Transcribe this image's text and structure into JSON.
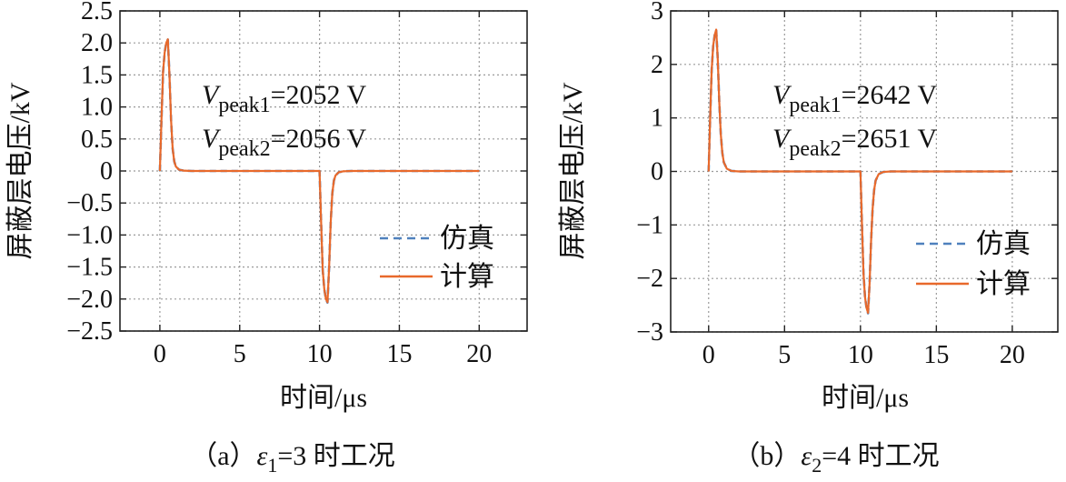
{
  "chart_data": [
    {
      "id": "a",
      "type": "line",
      "title": "",
      "caption": {
        "prefix": "（a）",
        "symbol": "ε",
        "sub": "1",
        "suffix": "=3 时工况"
      },
      "xlabel": "时间/μs",
      "ylabel": "屏蔽层电压/kV",
      "xlim": [
        -2.5,
        23
      ],
      "ylim": [
        -2.5,
        2.5
      ],
      "xticks": [
        0,
        5,
        10,
        15,
        20
      ],
      "xtick_labels": [
        "0",
        "5",
        "10",
        "15",
        "20"
      ],
      "yticks": [
        2.5,
        2.0,
        1.5,
        1.0,
        0.5,
        0,
        -0.5,
        -1.0,
        -1.5,
        -2.0,
        -2.5
      ],
      "ytick_labels": [
        "2.5",
        "2.0",
        "1.5",
        "1.0",
        "0.5",
        "0",
        "−0.5",
        "−1.0",
        "−1.5",
        "−2.0",
        "−2.5"
      ],
      "grid": true,
      "legend": {
        "position": "right-lower"
      },
      "series": [
        {
          "name": "仿真",
          "style": "dashed",
          "color": "#4f81bd",
          "x": [
            0,
            0.1,
            0.2,
            0.3,
            0.4,
            0.5,
            0.6,
            0.7,
            0.8,
            0.9,
            1.0,
            1.2,
            1.5,
            2.0,
            10.0,
            10.1,
            10.2,
            10.3,
            10.4,
            10.5,
            10.6,
            10.7,
            10.8,
            10.9,
            11.0,
            11.2,
            11.5,
            12.0,
            20.0
          ],
          "y": [
            0,
            0.8,
            1.55,
            1.85,
            2.0,
            2.052,
            1.5,
            0.8,
            0.35,
            0.15,
            0.07,
            0.02,
            0.005,
            0,
            0,
            -0.8,
            -1.55,
            -1.85,
            -2.0,
            -2.056,
            -1.5,
            -0.8,
            -0.35,
            -0.15,
            -0.07,
            -0.02,
            -0.005,
            0,
            0
          ]
        },
        {
          "name": "计算",
          "style": "solid",
          "color": "#e8692b",
          "x": [
            0,
            0.1,
            0.2,
            0.3,
            0.4,
            0.5,
            0.6,
            0.7,
            0.8,
            0.9,
            1.0,
            1.2,
            1.5,
            2.0,
            10.0,
            10.1,
            10.2,
            10.3,
            10.4,
            10.5,
            10.6,
            10.7,
            10.8,
            10.9,
            11.0,
            11.2,
            11.5,
            12.0,
            20.0
          ],
          "y": [
            0,
            0.8,
            1.55,
            1.85,
            2.0,
            2.056,
            1.5,
            0.8,
            0.35,
            0.15,
            0.07,
            0.02,
            0.005,
            0,
            0,
            -0.8,
            -1.55,
            -1.85,
            -2.0,
            -2.05,
            -1.5,
            -0.8,
            -0.35,
            -0.15,
            -0.07,
            -0.02,
            -0.005,
            0,
            0
          ]
        }
      ],
      "annotations": [
        {
          "symbol": "V",
          "sub": "peak1",
          "text": "=2052 V"
        },
        {
          "symbol": "V",
          "sub": "peak2",
          "text": "=2056 V"
        }
      ]
    },
    {
      "id": "b",
      "type": "line",
      "title": "",
      "caption": {
        "prefix": "（b）",
        "symbol": "ε",
        "sub": "2",
        "suffix": "=4 时工况"
      },
      "xlabel": "时间/μs",
      "ylabel": "屏蔽层电压/kV",
      "xlim": [
        -2.5,
        23
      ],
      "ylim": [
        -3,
        3
      ],
      "xticks": [
        0,
        5,
        10,
        15,
        20
      ],
      "xtick_labels": [
        "0",
        "5",
        "10",
        "15",
        "20"
      ],
      "yticks": [
        3,
        2,
        1,
        0,
        -1,
        -2,
        -3
      ],
      "ytick_labels": [
        "3",
        "2",
        "1",
        "0",
        "−1",
        "−2",
        "−3"
      ],
      "grid": true,
      "legend": {
        "position": "right-lower"
      },
      "series": [
        {
          "name": "仿真",
          "style": "dashed",
          "color": "#4f81bd",
          "x": [
            0,
            0.1,
            0.2,
            0.3,
            0.4,
            0.5,
            0.6,
            0.7,
            0.8,
            0.9,
            1.0,
            1.2,
            1.5,
            2.0,
            10.0,
            10.1,
            10.2,
            10.3,
            10.4,
            10.5,
            10.6,
            10.7,
            10.8,
            10.9,
            11.0,
            11.2,
            11.5,
            12.0,
            20.0
          ],
          "y": [
            0,
            1.0,
            1.9,
            2.35,
            2.55,
            2.642,
            2.1,
            1.3,
            0.7,
            0.35,
            0.17,
            0.05,
            0.01,
            0,
            0,
            -1.0,
            -1.9,
            -2.35,
            -2.55,
            -2.651,
            -2.1,
            -1.3,
            -0.7,
            -0.35,
            -0.17,
            -0.05,
            -0.01,
            0,
            0
          ]
        },
        {
          "name": "计算",
          "style": "solid",
          "color": "#e8692b",
          "x": [
            0,
            0.1,
            0.2,
            0.3,
            0.4,
            0.5,
            0.6,
            0.7,
            0.8,
            0.9,
            1.0,
            1.2,
            1.5,
            2.0,
            10.0,
            10.1,
            10.2,
            10.3,
            10.4,
            10.5,
            10.6,
            10.7,
            10.8,
            10.9,
            11.0,
            11.2,
            11.5,
            12.0,
            20.0
          ],
          "y": [
            0,
            1.0,
            1.9,
            2.35,
            2.55,
            2.651,
            2.1,
            1.3,
            0.7,
            0.35,
            0.17,
            0.05,
            0.01,
            0,
            0,
            -1.0,
            -1.9,
            -2.35,
            -2.55,
            -2.642,
            -2.1,
            -1.3,
            -0.7,
            -0.35,
            -0.17,
            -0.05,
            -0.01,
            0,
            0
          ]
        }
      ],
      "annotations": [
        {
          "symbol": "V",
          "sub": "peak1",
          "text": "=2642 V"
        },
        {
          "symbol": "V",
          "sub": "peak2",
          "text": "=2651 V"
        }
      ]
    }
  ]
}
